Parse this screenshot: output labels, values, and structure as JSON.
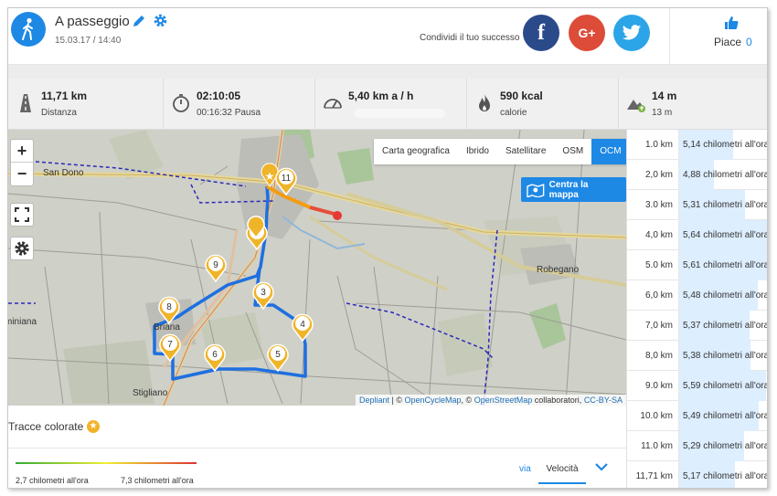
{
  "header": {
    "activity_title": "A passeggio",
    "activity_datetime": "15.03.17 / 14:40",
    "share_text": "Condividi il tuo successo",
    "social": {
      "facebook": "f",
      "google": "G+",
      "twitter": "twitter-bird"
    },
    "like_label": "Piace",
    "like_count": "0"
  },
  "stats": [
    {
      "icon": "road-icon",
      "value": "11,71 km",
      "sub": "Distanza"
    },
    {
      "icon": "stopwatch-icon",
      "value": "02:10:05",
      "sub": "00:16:32 Pausa"
    },
    {
      "icon": "speedometer-icon",
      "value": "5,40 km a / h",
      "sub": ""
    },
    {
      "icon": "flame-icon",
      "value": "590 kcal",
      "sub": "calorie"
    },
    {
      "icon": "mountain-icon",
      "value": "14 m",
      "sub": "13 m"
    }
  ],
  "map": {
    "layers": [
      "Carta geografica",
      "Ibrido",
      "Satellitare",
      "OSM",
      "OCM"
    ],
    "active_layer": "OCM",
    "center_button": "Centra la mappa",
    "places": [
      "San Dono",
      "Robegano",
      "Briana",
      "Stigliano",
      "miniana"
    ],
    "attribution": {
      "depliant": "Depliant",
      "copy1": "| ©",
      "opencyclemap": "OpenCycleMap",
      "copy2": ", ©",
      "openstreetmap": "OpenStreetMap",
      "collab": "collaboratori,",
      "license": "CC-BY-SA"
    },
    "markers": [
      "2",
      "3",
      "4",
      "5",
      "6",
      "7",
      "8",
      "9",
      "11"
    ]
  },
  "legend": {
    "title": "Tracce colorate",
    "min_label": "2,7 chilometri all'ora",
    "max_label": "7,3 chilometri all'ora",
    "via_label": "via",
    "metric": "Velocità"
  },
  "splits": [
    {
      "km": "1.0 km",
      "pace": "5,14 chilometri all'ora",
      "speed": 5.14
    },
    {
      "km": "2,0 km",
      "pace": "4,88 chilometri all'ora",
      "speed": 4.88
    },
    {
      "km": "3.0 km",
      "pace": "5,31 chilometri all'ora",
      "speed": 5.31
    },
    {
      "km": "4,0 km",
      "pace": "5,64 chilometri all'ora",
      "speed": 5.64
    },
    {
      "km": "5.0 km",
      "pace": "5,61 chilometri all'ora",
      "speed": 5.61
    },
    {
      "km": "6,0 km",
      "pace": "5,48 chilometri all'ora",
      "speed": 5.48
    },
    {
      "km": "7,0 km",
      "pace": "5,37 chilometri all'ora",
      "speed": 5.37
    },
    {
      "km": "8,0 km",
      "pace": "5,38 chilometri all'ora",
      "speed": 5.38
    },
    {
      "km": "9.0 km",
      "pace": "5,59 chilometri all'ora",
      "speed": 5.59
    },
    {
      "km": "10.0 km",
      "pace": "5,49 chilometri all'ora",
      "speed": 5.49
    },
    {
      "km": "11.0 km",
      "pace": "5,29 chilometri all'ora",
      "speed": 5.29
    },
    {
      "km": "11,71 km",
      "pace": "5,17 chilometri all'ora",
      "speed": 5.17
    }
  ],
  "colors": {
    "accent": "#1e88e5",
    "route": "#1e6fe0",
    "marker": "#f0b429"
  }
}
